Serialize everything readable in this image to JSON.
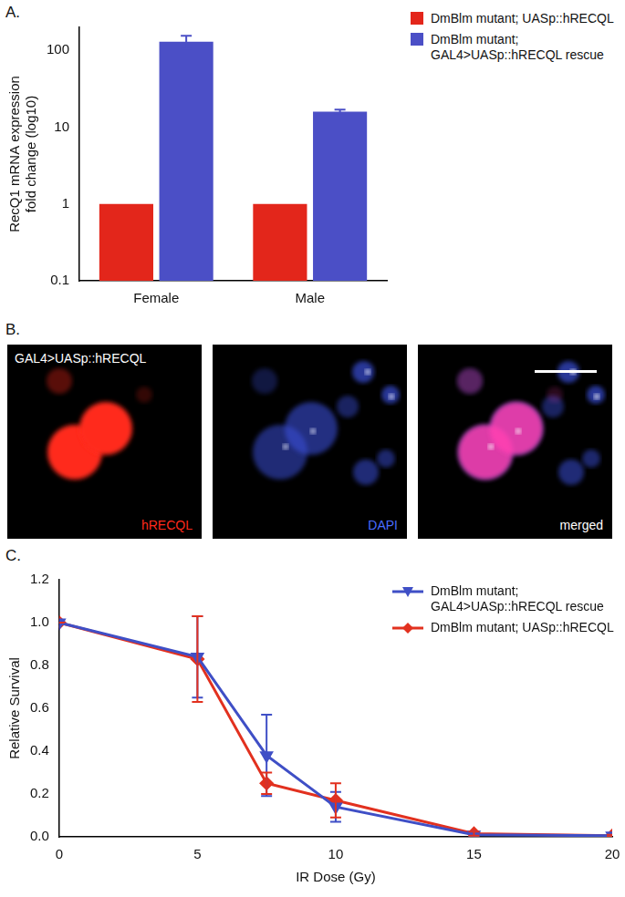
{
  "chart_data": [
    {
      "type": "bar",
      "panel": "A.",
      "y_label": [
        "RecQ1 mRNA expression",
        "fold change (log10)"
      ],
      "categories": [
        "Female",
        "Male"
      ],
      "series": [
        {
          "name": "DmBlm mutant; UASp::hRECQL",
          "color": "#e3261b",
          "values": [
            1,
            1
          ]
        },
        {
          "name": "DmBlm mutant; GAL4>UASp::hRECQL rescue",
          "color": "#4b4fc6",
          "values": [
            130,
            16
          ],
          "errors": [
            25,
            1
          ]
        }
      ],
      "log": "y",
      "ylim": [
        0.1,
        200
      ],
      "yticks": [
        0.1,
        1,
        10,
        100
      ],
      "grid": false,
      "legend": "upper right"
    },
    {
      "type": "line",
      "panel": "C.",
      "x_label": "IR Dose (Gy)",
      "y_label": "Relative Survival",
      "x": [
        0,
        5,
        7.5,
        10,
        15,
        20
      ],
      "series": [
        {
          "name": "DmBlm mutant; GAL4>UASp::hRECQL rescue",
          "color": "#3f4fc6",
          "marker": "triangle_down",
          "values": [
            1.0,
            0.84,
            0.38,
            0.14,
            0.01,
            0.005
          ],
          "errors": [
            0,
            0.19,
            0.19,
            0.07,
            0.01,
            0.005
          ]
        },
        {
          "name": "DmBlm mutant; UASp::hRECQL",
          "color": "#e2311f",
          "marker": "diamond",
          "values": [
            1.0,
            0.83,
            0.25,
            0.17,
            0.015,
            0.005
          ],
          "errors": [
            0,
            0.2,
            0.05,
            0.08,
            0.01,
            0.005
          ]
        }
      ],
      "xlim": [
        0,
        20
      ],
      "xticks": [
        0,
        5,
        10,
        15,
        20
      ],
      "ylim": [
        0,
        1.2
      ],
      "yticks": [
        {
          "value": 0,
          "label": "0.0"
        },
        0.2,
        0.4,
        0.6,
        0.8,
        {
          "value": 1,
          "label": "1.0"
        },
        1.2
      ],
      "grid": false,
      "legend": "upper right"
    }
  ],
  "image_panel": {
    "panel": "B.",
    "caption": "GAL4>UASp::hRECQL",
    "images": [
      {
        "label": "hRECQL",
        "color": "#ff2a1c"
      },
      {
        "label": "DAPI",
        "color": "#4a6cff"
      },
      {
        "label": "merged",
        "color": "#ffffff"
      }
    ]
  }
}
